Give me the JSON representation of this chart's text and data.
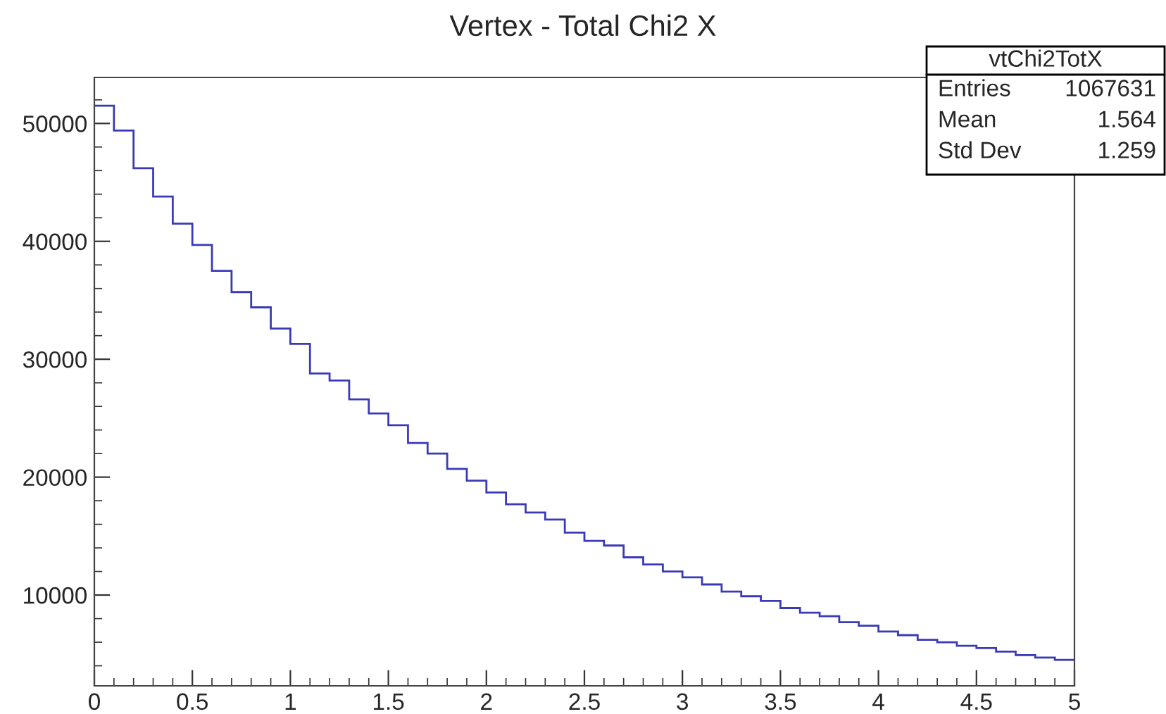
{
  "chart_data": {
    "type": "histogram",
    "title": "Vertex - Total Chi2 X",
    "bins": [
      0,
      0.1,
      0.2,
      0.3,
      0.4,
      0.5,
      0.6,
      0.7,
      0.8,
      0.9,
      1.0,
      1.1,
      1.2,
      1.3,
      1.4,
      1.5,
      1.6,
      1.7,
      1.8,
      1.9,
      2.0,
      2.1,
      2.2,
      2.3,
      2.4,
      2.5,
      2.6,
      2.7,
      2.8,
      2.9,
      3.0,
      3.1,
      3.2,
      3.3,
      3.4,
      3.5,
      3.6,
      3.7,
      3.8,
      3.9,
      4.0,
      4.1,
      4.2,
      4.3,
      4.4,
      4.5,
      4.6,
      4.7,
      4.8,
      4.9,
      5.0
    ],
    "values": [
      51500,
      49400,
      46200,
      43800,
      41500,
      39700,
      37500,
      35700,
      34400,
      32600,
      31300,
      28800,
      28200,
      26600,
      25400,
      24400,
      22900,
      22000,
      20700,
      19700,
      18700,
      17700,
      17000,
      16400,
      15300,
      14600,
      14200,
      13200,
      12600,
      12000,
      11500,
      10900,
      10300,
      9900,
      9500,
      8900,
      8500,
      8200,
      7700,
      7400,
      6900,
      6600,
      6200,
      6000,
      5700,
      5500,
      5200,
      4900,
      4700,
      4500
    ],
    "color": "#3a3ab8",
    "xlim": [
      0,
      5
    ],
    "ylim": [
      2300,
      53900
    ],
    "xticks": [
      0,
      0.5,
      1,
      1.5,
      2,
      2.5,
      3,
      3.5,
      4,
      4.5,
      5
    ],
    "yticks": [
      10000,
      20000,
      30000,
      40000,
      50000
    ],
    "grid": false,
    "annotations": [
      "vtChi2TotX",
      "Entries",
      "1067631",
      "Mean",
      "1.564",
      "Std Dev",
      "1.259"
    ]
  }
}
